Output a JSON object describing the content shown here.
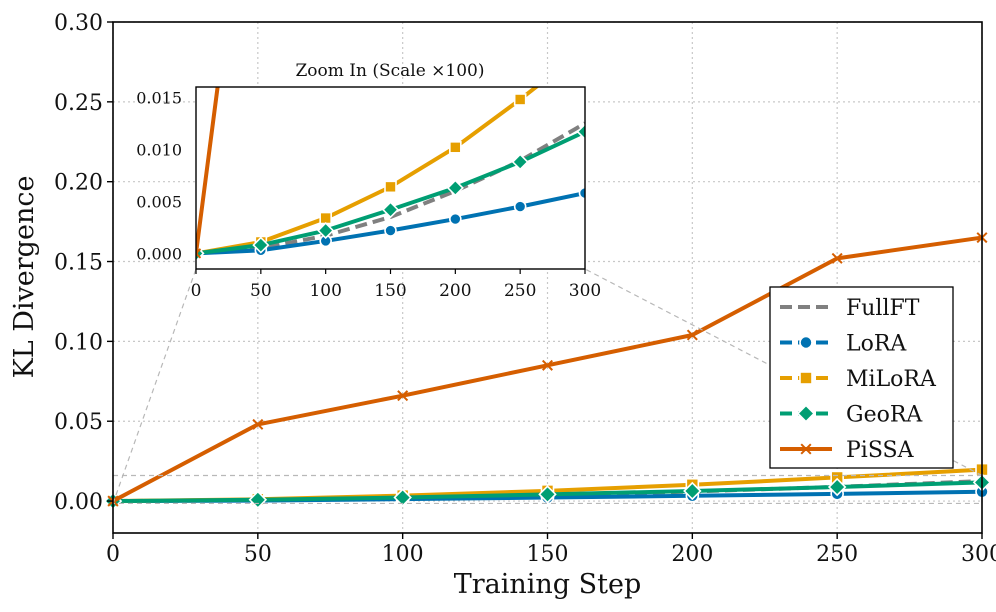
{
  "chart_data": [
    {
      "type": "line",
      "xlabel": "Training Step",
      "ylabel": "KL Divergence",
      "xlim": [
        0,
        300
      ],
      "ylim": [
        -0.02,
        0.3
      ],
      "xticks": [
        "0",
        "50",
        "100",
        "150",
        "200",
        "250",
        "300"
      ],
      "yticks": [
        "0.00",
        "0.05",
        "0.10",
        "0.15",
        "0.20",
        "0.25",
        "0.30"
      ],
      "grid": true,
      "legend_position": "center-right",
      "x": [
        0,
        50,
        100,
        150,
        200,
        250,
        300
      ],
      "series": [
        {
          "name": "FullFT",
          "color": "#808080",
          "marker": "none",
          "dashed": true,
          "values": [
            0.0,
            0.0005,
            0.0017,
            0.0035,
            0.006,
            0.0089,
            0.0125
          ]
        },
        {
          "name": "LoRA",
          "color": "#0072b2",
          "marker": "circle",
          "dashed": true,
          "values": [
            0.0,
            0.0003,
            0.0012,
            0.0022,
            0.0033,
            0.0045,
            0.0058
          ]
        },
        {
          "name": "MiLoRA",
          "color": "#e69f00",
          "marker": "square",
          "dashed": true,
          "values": [
            0.0,
            0.0011,
            0.0034,
            0.0064,
            0.0102,
            0.0148,
            0.0197
          ]
        },
        {
          "name": "GeoRA",
          "color": "#009e73",
          "marker": "diamond",
          "dashed": true,
          "values": [
            0.0,
            0.0008,
            0.0022,
            0.0042,
            0.0063,
            0.0088,
            0.0117
          ]
        },
        {
          "name": "PiSSA",
          "color": "#d55e00",
          "marker": "x",
          "dashed": false,
          "values": [
            0.0,
            0.048,
            0.066,
            0.085,
            0.104,
            0.152,
            0.165
          ]
        }
      ]
    },
    {
      "type": "line",
      "title": "Zoom In (Scale ×100)",
      "xlim": [
        0,
        300
      ],
      "ylim": [
        -0.0015,
        0.016
      ],
      "xticks": [
        "0",
        "50",
        "100",
        "150",
        "200",
        "250",
        "300"
      ],
      "yticks": [
        "0.000",
        "0.005",
        "0.010",
        "0.015"
      ],
      "grid": false,
      "note": "inset shows the same series on a magnified y-axis"
    }
  ]
}
